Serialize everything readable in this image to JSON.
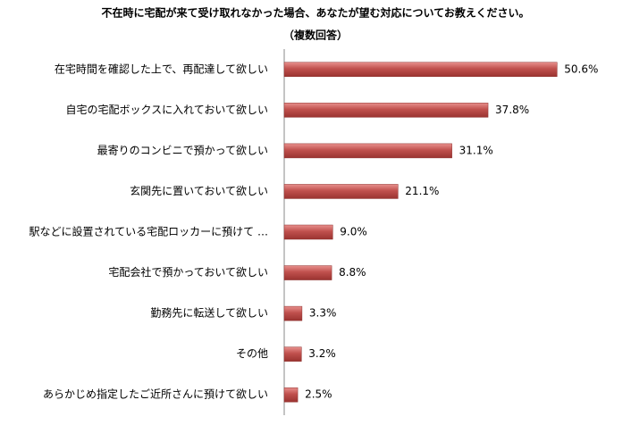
{
  "chart_data": {
    "type": "bar",
    "orientation": "horizontal",
    "title": "不在時に宅配が来て受け取れなかった場合、あなたが望む対応についてお教えください。",
    "subtitle": "（複数回答）",
    "categories": [
      "在宅時間を確認した上で、再配達して欲しい",
      "自宅の宅配ボックスに入れておいて欲しい",
      "最寄りのコンビニで預かって欲しい",
      "玄関先に置いておいて欲しい",
      "駅などに設置されている宅配ロッカーに預けて …",
      "宅配会社で預かっておいて欲しい",
      "勤務先に転送して欲しい",
      "その他",
      "あらかじめ指定したご近所さんに預けて欲しい"
    ],
    "values": [
      50.6,
      37.8,
      31.1,
      21.1,
      9.0,
      8.8,
      3.3,
      3.2,
      2.5
    ],
    "value_labels": [
      "50.6%",
      "37.8%",
      "31.1%",
      "21.1%",
      "9.0%",
      "8.8%",
      "3.3%",
      "3.2%",
      "2.5%"
    ],
    "color": "#c0504d",
    "xlim": [
      0,
      60
    ]
  }
}
